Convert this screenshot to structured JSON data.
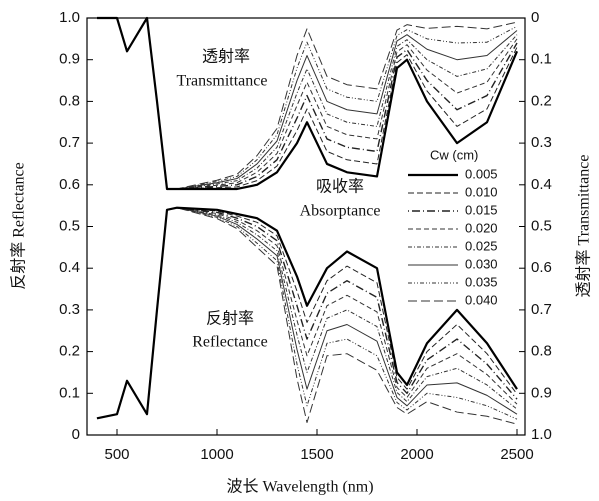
{
  "chart_data": {
    "type": "line",
    "x_label": "波长 Wavelength (nm)",
    "y_label": "反射率 Reflectance",
    "y2_label": "透射率 Transmittance",
    "legend_title": "Cw (cm)",
    "annotations": [
      {
        "text": "透射率"
      },
      {
        "text": "Transmittance"
      },
      {
        "text": "吸收率"
      },
      {
        "text": "Absorptance"
      },
      {
        "text": "反射率"
      },
      {
        "text": "Reflectance"
      }
    ],
    "xlim": [
      350,
      2540
    ],
    "xticks": [
      500,
      1000,
      1500,
      2000,
      2500
    ],
    "ylim": [
      0,
      1
    ],
    "yticks": [
      0,
      0.1,
      0.2,
      0.3,
      0.4,
      0.5,
      0.6,
      0.7,
      0.8,
      0.9,
      {
        "value": 1,
        "label": "1.0"
      }
    ],
    "y2lim": [
      1,
      0
    ],
    "y2ticks": [
      0,
      0.1,
      0.2,
      0.3,
      0.4,
      0.5,
      0.6,
      0.7,
      0.8,
      0.9,
      {
        "value": 1,
        "label": "1.0"
      }
    ],
    "x": [
      400,
      500,
      550,
      650,
      700,
      750,
      800,
      1000,
      1100,
      1200,
      1300,
      1400,
      1450,
      1550,
      1650,
      1800,
      1900,
      1950,
      2050,
      2200,
      2350,
      2500
    ],
    "series": [
      {
        "name": "0.005",
        "color": "#000",
        "width": 2.2,
        "dash": "none",
        "values": [
          0.04,
          0.05,
          0.13,
          0.05,
          0.3,
          0.54,
          0.545,
          0.54,
          0.53,
          0.52,
          0.49,
          0.38,
          0.31,
          0.4,
          0.44,
          0.4,
          0.15,
          0.12,
          0.22,
          0.3,
          0.22,
          0.11
        ],
        "transmittance": [
          0,
          0,
          0.08,
          0,
          0.2,
          0.41,
          0.41,
          0.41,
          0.41,
          0.4,
          0.37,
          0.3,
          0.25,
          0.35,
          0.37,
          0.38,
          0.12,
          0.1,
          0.2,
          0.3,
          0.25,
          0.08
        ]
      },
      {
        "name": "0.010",
        "color": "#222",
        "width": 1,
        "dash": "6,3",
        "values": [
          0.04,
          0.05,
          0.13,
          0.05,
          0.3,
          0.54,
          0.545,
          0.537,
          0.525,
          0.51,
          0.478,
          0.345,
          0.27,
          0.37,
          0.405,
          0.365,
          0.138,
          0.11,
          0.2,
          0.265,
          0.195,
          0.098
        ],
        "transmittance": [
          0,
          0,
          0.08,
          0,
          0.2,
          0.41,
          0.41,
          0.407,
          0.405,
          0.39,
          0.355,
          0.27,
          0.218,
          0.32,
          0.34,
          0.35,
          0.107,
          0.088,
          0.175,
          0.26,
          0.218,
          0.07
        ]
      },
      {
        "name": "0.015",
        "color": "#222",
        "width": 1.4,
        "dash": "1,3,8,3",
        "values": [
          0.04,
          0.05,
          0.13,
          0.05,
          0.3,
          0.54,
          0.545,
          0.534,
          0.52,
          0.5,
          0.466,
          0.31,
          0.23,
          0.34,
          0.37,
          0.33,
          0.126,
          0.1,
          0.18,
          0.23,
          0.17,
          0.086
        ],
        "transmittance": [
          0,
          0,
          0.08,
          0,
          0.2,
          0.41,
          0.41,
          0.404,
          0.4,
          0.38,
          0.34,
          0.24,
          0.186,
          0.29,
          0.31,
          0.32,
          0.094,
          0.076,
          0.15,
          0.22,
          0.186,
          0.06
        ]
      },
      {
        "name": "0.020",
        "color": "#333",
        "width": 1,
        "dash": "5,3",
        "values": [
          0.04,
          0.05,
          0.13,
          0.05,
          0.3,
          0.54,
          0.545,
          0.531,
          0.515,
          0.49,
          0.454,
          0.275,
          0.19,
          0.31,
          0.335,
          0.295,
          0.114,
          0.09,
          0.16,
          0.195,
          0.145,
          0.074
        ],
        "transmittance": [
          0,
          0,
          0.08,
          0,
          0.2,
          0.41,
          0.41,
          0.401,
          0.395,
          0.37,
          0.325,
          0.21,
          0.154,
          0.26,
          0.28,
          0.29,
          0.081,
          0.064,
          0.125,
          0.18,
          0.154,
          0.05
        ]
      },
      {
        "name": "0.025",
        "color": "#333",
        "width": 1,
        "dash": "4,2,1,2",
        "values": [
          0.04,
          0.05,
          0.13,
          0.05,
          0.3,
          0.54,
          0.545,
          0.528,
          0.51,
          0.48,
          0.442,
          0.24,
          0.15,
          0.28,
          0.3,
          0.26,
          0.102,
          0.08,
          0.14,
          0.16,
          0.12,
          0.062
        ],
        "transmittance": [
          0,
          0,
          0.08,
          0,
          0.2,
          0.41,
          0.41,
          0.398,
          0.39,
          0.36,
          0.31,
          0.18,
          0.122,
          0.23,
          0.25,
          0.26,
          0.068,
          0.052,
          0.1,
          0.14,
          0.122,
          0.04
        ]
      },
      {
        "name": "0.030",
        "color": "#333",
        "width": 1,
        "dash": "none",
        "values": [
          0.04,
          0.05,
          0.13,
          0.05,
          0.3,
          0.54,
          0.545,
          0.525,
          0.505,
          0.47,
          0.43,
          0.205,
          0.11,
          0.25,
          0.265,
          0.225,
          0.09,
          0.07,
          0.12,
          0.125,
          0.095,
          0.05
        ],
        "transmittance": [
          0,
          0,
          0.08,
          0,
          0.2,
          0.41,
          0.41,
          0.395,
          0.385,
          0.35,
          0.295,
          0.15,
          0.09,
          0.2,
          0.22,
          0.23,
          0.055,
          0.04,
          0.075,
          0.1,
          0.09,
          0.03
        ]
      },
      {
        "name": "0.035",
        "color": "#333",
        "width": 1,
        "dash": "4,2,1,2,1,2",
        "values": [
          0.04,
          0.05,
          0.13,
          0.05,
          0.3,
          0.54,
          0.545,
          0.522,
          0.5,
          0.46,
          0.418,
          0.17,
          0.07,
          0.22,
          0.23,
          0.19,
          0.078,
          0.06,
          0.1,
          0.09,
          0.07,
          0.038
        ],
        "transmittance": [
          0,
          0,
          0.08,
          0,
          0.2,
          0.41,
          0.41,
          0.392,
          0.38,
          0.34,
          0.28,
          0.12,
          0.058,
          0.17,
          0.19,
          0.2,
          0.042,
          0.028,
          0.05,
          0.06,
          0.058,
          0.02
        ]
      },
      {
        "name": "0.040",
        "color": "#333",
        "width": 1,
        "dash": "9,4",
        "values": [
          0.04,
          0.05,
          0.13,
          0.05,
          0.3,
          0.54,
          0.545,
          0.519,
          0.495,
          0.45,
          0.406,
          0.135,
          0.03,
          0.19,
          0.195,
          0.155,
          0.066,
          0.05,
          0.08,
          0.055,
          0.045,
          0.026
        ],
        "transmittance": [
          0,
          0,
          0.08,
          0,
          0.2,
          0.41,
          0.41,
          0.389,
          0.375,
          0.33,
          0.265,
          0.09,
          0.026,
          0.14,
          0.16,
          0.17,
          0.029,
          0.016,
          0.025,
          0.02,
          0.026,
          0.01
        ]
      }
    ]
  }
}
